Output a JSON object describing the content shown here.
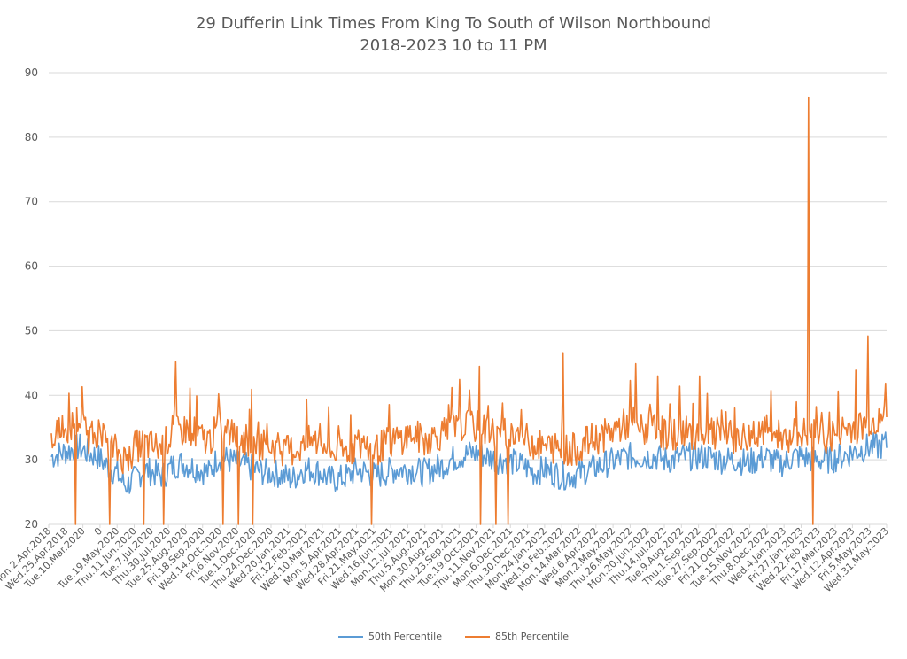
{
  "chart_data": {
    "type": "line",
    "title": "29 Dufferin Link Times From King To South of Wilson Northbound",
    "subtitle": "2018-2023 10 to 11 PM",
    "xlabel": "",
    "ylabel": "",
    "ylim": [
      20,
      90
    ],
    "yticks": [
      20,
      30,
      40,
      50,
      60,
      70,
      80,
      90
    ],
    "grid": true,
    "legend_position": "bottom",
    "x_tick_labels": [
      "Mon.2.Apr.2018",
      "Wed.25.Apr.2018",
      "Tue.10.Mar.2020",
      "0",
      "Tue.19.May.2020",
      "Thu.11.Jun.2020",
      "Tue.7.Jul.2020",
      "Thu.30.Jul.2020",
      "Tue.25.Aug.2020",
      "Fri.18.Sep.2020",
      "Wed.14.Oct.2020",
      "Fri.6.Nov.2020",
      "Tue.1.Dec.2020",
      "Thu.24.Dec.2020",
      "Wed.20.Jan.2021",
      "Fri.12.Feb.2021",
      "Wed.10.Mar.2021",
      "Mon.5.Apr.2021",
      "Wed.28.Apr.2021",
      "Fri.21.May.2021",
      "Wed.16.Jun.2021",
      "Mon.12.Jul.2021",
      "Thu.5.Aug.2021",
      "Mon.30.Aug.2021",
      "Thu.23.Sep.2021",
      "Tue.19.Oct.2021",
      "Thu.11.Nov.2021",
      "Mon.6.Dec.2021",
      "Thu.30.Dec.2021",
      "Mon.24.Jan.2022",
      "Wed.16.Feb.2022",
      "Mon.14.Mar.2022",
      "Wed.6.Apr.2022",
      "Mon.2.May.2022",
      "Thu.26.May.2022",
      "Mon.20.Jun.2022",
      "Thu.14.Jul.2022",
      "Tue.9.Aug.2022",
      "Thu.1.Sep.2022",
      "Tue.27.Sep.2022",
      "Fri.21.Oct.2022",
      "Tue.15.Nov.2022",
      "Thu.8.Dec.2022",
      "Wed.4.Jan.2023",
      "Fri.27.Jan.2023",
      "Wed.22.Feb.2023",
      "Fri.17.Mar.2023",
      "Wed.12.Apr.2023",
      "Fri.5.May.2023",
      "Wed.31.May.2023"
    ],
    "series": [
      {
        "name": "50th Percentile",
        "color": "#5b9bd5",
        "values": [
          30.5,
          31.0,
          31.5,
          32.0,
          31.0,
          30.5,
          29.0,
          28.0,
          26.0,
          27.0,
          28.5,
          28.0,
          27.5,
          29.0,
          29.5,
          29.0,
          28.5,
          28.0,
          30.5,
          30.0,
          29.5,
          29.0,
          28.5,
          28.0,
          28.0,
          27.5,
          27.0,
          28.5,
          28.5,
          28.0,
          27.0,
          27.0,
          27.5,
          28.5,
          28.0,
          27.5,
          28.0,
          28.5,
          28.5,
          28.5,
          28.0,
          28.5,
          29.0,
          30.0,
          30.5,
          31.0,
          31.0,
          30.5,
          30.0,
          30.0,
          29.5,
          29.0,
          28.0,
          28.5,
          28.0,
          27.5,
          27.5,
          28.0,
          28.5,
          29.0,
          29.5,
          30.0,
          30.5,
          30.5,
          30.5,
          30.5,
          30.0,
          30.0,
          30.5,
          30.5,
          30.5,
          30.5,
          30.0,
          30.0,
          30.0,
          29.5,
          30.0,
          30.5,
          29.5,
          29.5,
          30.5,
          30.5,
          30.0,
          30.0,
          30.0,
          30.5,
          31.0,
          31.5,
          32.0,
          32.0,
          32.5
        ],
        "description_note": ""
      },
      {
        "name": "85th Percentile",
        "color": "#ed7d31",
        "values": [
          34.0,
          33.5,
          35.0,
          36.5,
          33.5,
          34.5,
          32.0,
          31.5,
          30.0,
          32.0,
          32.5,
          32.0,
          32.0,
          34.0,
          34.5,
          35.0,
          33.5,
          33.0,
          35.0,
          34.5,
          33.5,
          33.0,
          32.5,
          32.5,
          32.0,
          31.5,
          31.5,
          32.0,
          33.0,
          32.5,
          31.5,
          31.0,
          31.5,
          32.5,
          32.0,
          31.5,
          32.5,
          33.0,
          33.5,
          34.0,
          33.0,
          33.5,
          34.0,
          34.5,
          35.0,
          35.5,
          35.0,
          34.5,
          34.0,
          34.0,
          34.0,
          33.5,
          32.5,
          32.0,
          32.0,
          31.5,
          31.5,
          32.0,
          33.0,
          33.5,
          34.0,
          35.0,
          35.5,
          35.0,
          34.5,
          35.0,
          34.0,
          34.0,
          34.5,
          34.0,
          34.5,
          34.0,
          34.0,
          33.5,
          33.5,
          33.5,
          33.5,
          34.5,
          34.0,
          33.5,
          34.0,
          34.0,
          34.0,
          33.5,
          33.5,
          34.5,
          35.0,
          35.0,
          36.0,
          36.0,
          37.0
        ]
      }
    ],
    "spikes_85th": [
      {
        "index": 0.45,
        "value": 36.5
      },
      {
        "index": 0.72,
        "value": 33.5
      },
      {
        "index": 1.4,
        "value": 20
      },
      {
        "index": 3.4,
        "value": 20
      },
      {
        "index": 5.4,
        "value": 20
      },
      {
        "index": 6.6,
        "value": 20
      },
      {
        "index": 7.3,
        "value": 45.2
      },
      {
        "index": 10.1,
        "value": 20
      },
      {
        "index": 11.0,
        "value": 20
      },
      {
        "index": 11.6,
        "value": 37.8
      },
      {
        "index": 11.8,
        "value": 20
      },
      {
        "index": 18.8,
        "value": 20
      },
      {
        "index": 23.5,
        "value": 41.2
      },
      {
        "index": 25.1,
        "value": 44.5
      },
      {
        "index": 25.2,
        "value": 20
      },
      {
        "index": 25.6,
        "value": 38.4
      },
      {
        "index": 26.1,
        "value": 20
      },
      {
        "index": 26.8,
        "value": 20
      },
      {
        "index": 27.4,
        "value": 35.0
      },
      {
        "index": 30.0,
        "value": 46.6
      },
      {
        "index": 34.3,
        "value": 44.9
      },
      {
        "index": 35.6,
        "value": 43.0
      },
      {
        "index": 38.0,
        "value": 43.0
      },
      {
        "index": 44.4,
        "value": 86.2
      },
      {
        "index": 44.7,
        "value": 20
      },
      {
        "index": 47.2,
        "value": 43.9
      },
      {
        "index": 47.9,
        "value": 49.2
      },
      {
        "index": 49.9,
        "value": 44.2
      }
    ]
  },
  "legend": {
    "items": [
      {
        "label": "50th Percentile",
        "color": "#5b9bd5"
      },
      {
        "label": "85th Percentile",
        "color": "#ed7d31"
      }
    ]
  }
}
